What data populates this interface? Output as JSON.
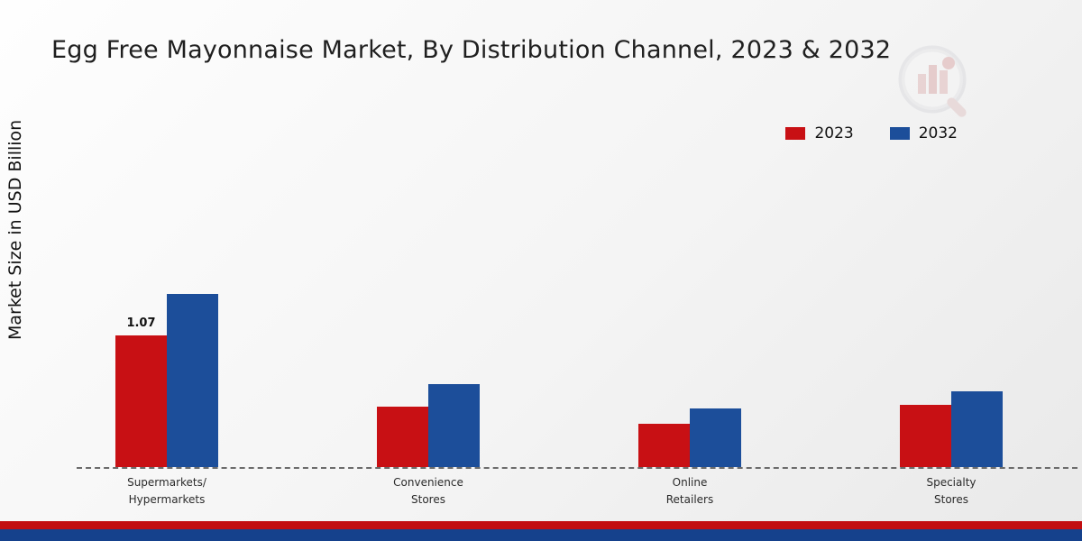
{
  "page": {
    "title": "Egg Free Mayonnaise Market, By Distribution Channel, 2023 & 2032"
  },
  "y_axis": {
    "label": "Market Size in USD Billion"
  },
  "legend": {
    "items": [
      {
        "label": "2023",
        "color": "#c81014"
      },
      {
        "label": "2032",
        "color": "#1c4e9a"
      }
    ]
  },
  "chart_data": {
    "type": "bar",
    "title": "Egg Free Mayonnaise Market, By Distribution Channel, 2023 & 2032",
    "xlabel": "",
    "ylabel": "Market Size in USD Billion",
    "categories": [
      "Supermarkets/Hypermarkets",
      "Convenience Stores",
      "Online Retailers",
      "Specialty Stores"
    ],
    "series": [
      {
        "name": "2023",
        "color": "#c81014",
        "values": [
          1.07,
          0.49,
          0.35,
          0.51
        ]
      },
      {
        "name": "2032",
        "color": "#1c4e9a",
        "values": [
          1.41,
          0.68,
          0.48,
          0.62
        ]
      }
    ],
    "data_labels": [
      {
        "series": "2023",
        "category_index": 0,
        "text": "1.07"
      }
    ],
    "ylim": [
      0,
      1.6
    ],
    "grid": "off",
    "baseline": "dashed",
    "legend_position": "top-right"
  },
  "branding": {
    "logo": "market-research-future-logo-watermark"
  }
}
